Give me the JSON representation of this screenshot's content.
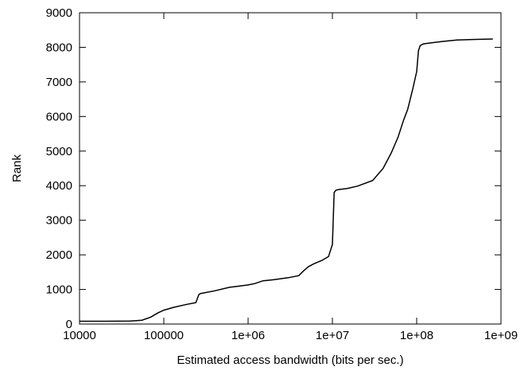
{
  "chart_data": {
    "type": "line",
    "title": "",
    "xlabel": "Estimated access bandwidth (bits per sec.)",
    "ylabel": "Rank",
    "x_scale": "log",
    "xlim": [
      10000,
      1000000000
    ],
    "ylim": [
      0,
      9000
    ],
    "x_ticks": [
      10000,
      100000,
      1000000,
      10000000,
      100000000,
      1000000000
    ],
    "x_tick_labels": [
      "10000",
      "100000",
      "1e+06",
      "1e+07",
      "1e+08",
      "1e+09"
    ],
    "y_ticks": [
      0,
      1000,
      2000,
      3000,
      4000,
      5000,
      6000,
      7000,
      8000,
      9000
    ],
    "y_tick_labels": [
      "0",
      "1000",
      "2000",
      "3000",
      "4000",
      "5000",
      "6000",
      "7000",
      "8000",
      "9000"
    ],
    "grid": false,
    "legend": "none",
    "line_color": "#000000",
    "series": [
      {
        "x": [
          10000,
          20000,
          40000,
          55000,
          70000,
          85000,
          100000,
          130000,
          180000,
          240000,
          260000,
          270000,
          300000,
          400000,
          600000,
          800000,
          1000000,
          1200000,
          1500000,
          2000000,
          3000000,
          4000000,
          4600000,
          5200000,
          6000000,
          7500000,
          9000000,
          10000000,
          10500000,
          11000000,
          12000000,
          15000000,
          20000000,
          30000000,
          40000000,
          50000000,
          60000000,
          70000000,
          78000000,
          80000000,
          90000000,
          100000000,
          105000000,
          110000000,
          120000000,
          150000000,
          200000000,
          300000000,
          500000000,
          800000000
        ],
        "y": [
          80,
          80,
          85,
          110,
          200,
          320,
          400,
          480,
          560,
          620,
          850,
          880,
          900,
          960,
          1060,
          1100,
          1130,
          1170,
          1250,
          1280,
          1340,
          1400,
          1550,
          1660,
          1740,
          1840,
          1950,
          2300,
          3800,
          3870,
          3890,
          3920,
          3990,
          4150,
          4500,
          4950,
          5400,
          5900,
          6200,
          6300,
          6800,
          7300,
          7900,
          8050,
          8100,
          8130,
          8170,
          8210,
          8230,
          8240
        ]
      }
    ]
  }
}
